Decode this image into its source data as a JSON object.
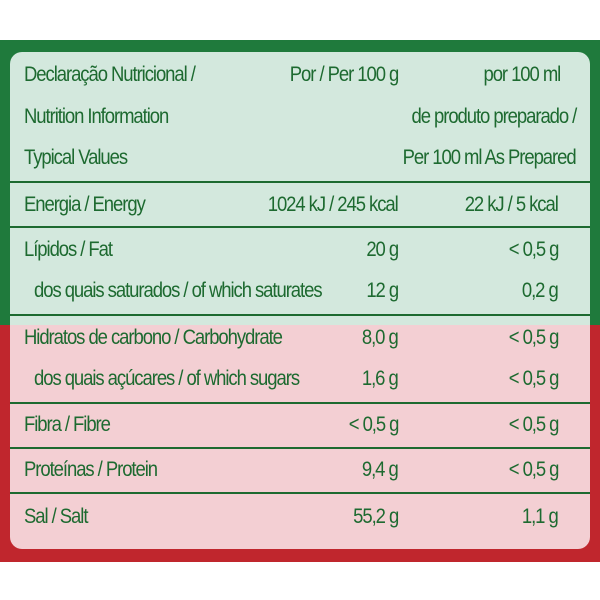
{
  "header": {
    "col1": [
      "Declaração Nutricional /",
      "Nutrition Information",
      "Typical Values"
    ],
    "col2": "Por / Per 100 g",
    "col3": [
      "por 100 ml",
      "de produto preparado /",
      "Per 100 ml As Prepared"
    ]
  },
  "rows": [
    {
      "label": "Energia / Energy",
      "per100g": "1024 kJ / 245 kcal",
      "per100ml": "22 kJ / 5 kcal"
    },
    {
      "label": "Lípidos / Fat",
      "per100g": "20 g",
      "per100ml": "< 0,5 g"
    },
    {
      "label": "dos quais saturados / of which saturates",
      "per100g": "12 g",
      "per100ml": "0,2 g"
    },
    {
      "label": "Hidratos de carbono / Carbohydrate",
      "per100g": "8,0 g",
      "per100ml": "< 0,5 g"
    },
    {
      "label": "dos quais açúcares / of which sugars",
      "per100g": "1,6 g",
      "per100ml": "< 0,5 g"
    },
    {
      "label": "Fibra / Fibre",
      "per100g": "< 0,5 g",
      "per100ml": "< 0,5 g"
    },
    {
      "label": "Proteínas / Protein",
      "per100g": "9,4 g",
      "per100ml": "< 0,5 g"
    },
    {
      "label": "Sal / Salt",
      "per100g": "55,2 g",
      "per100ml": "1,1 g"
    }
  ],
  "colors": {
    "green": "#1f7a3c",
    "red": "#c0262d",
    "text": "#1d6a30"
  }
}
